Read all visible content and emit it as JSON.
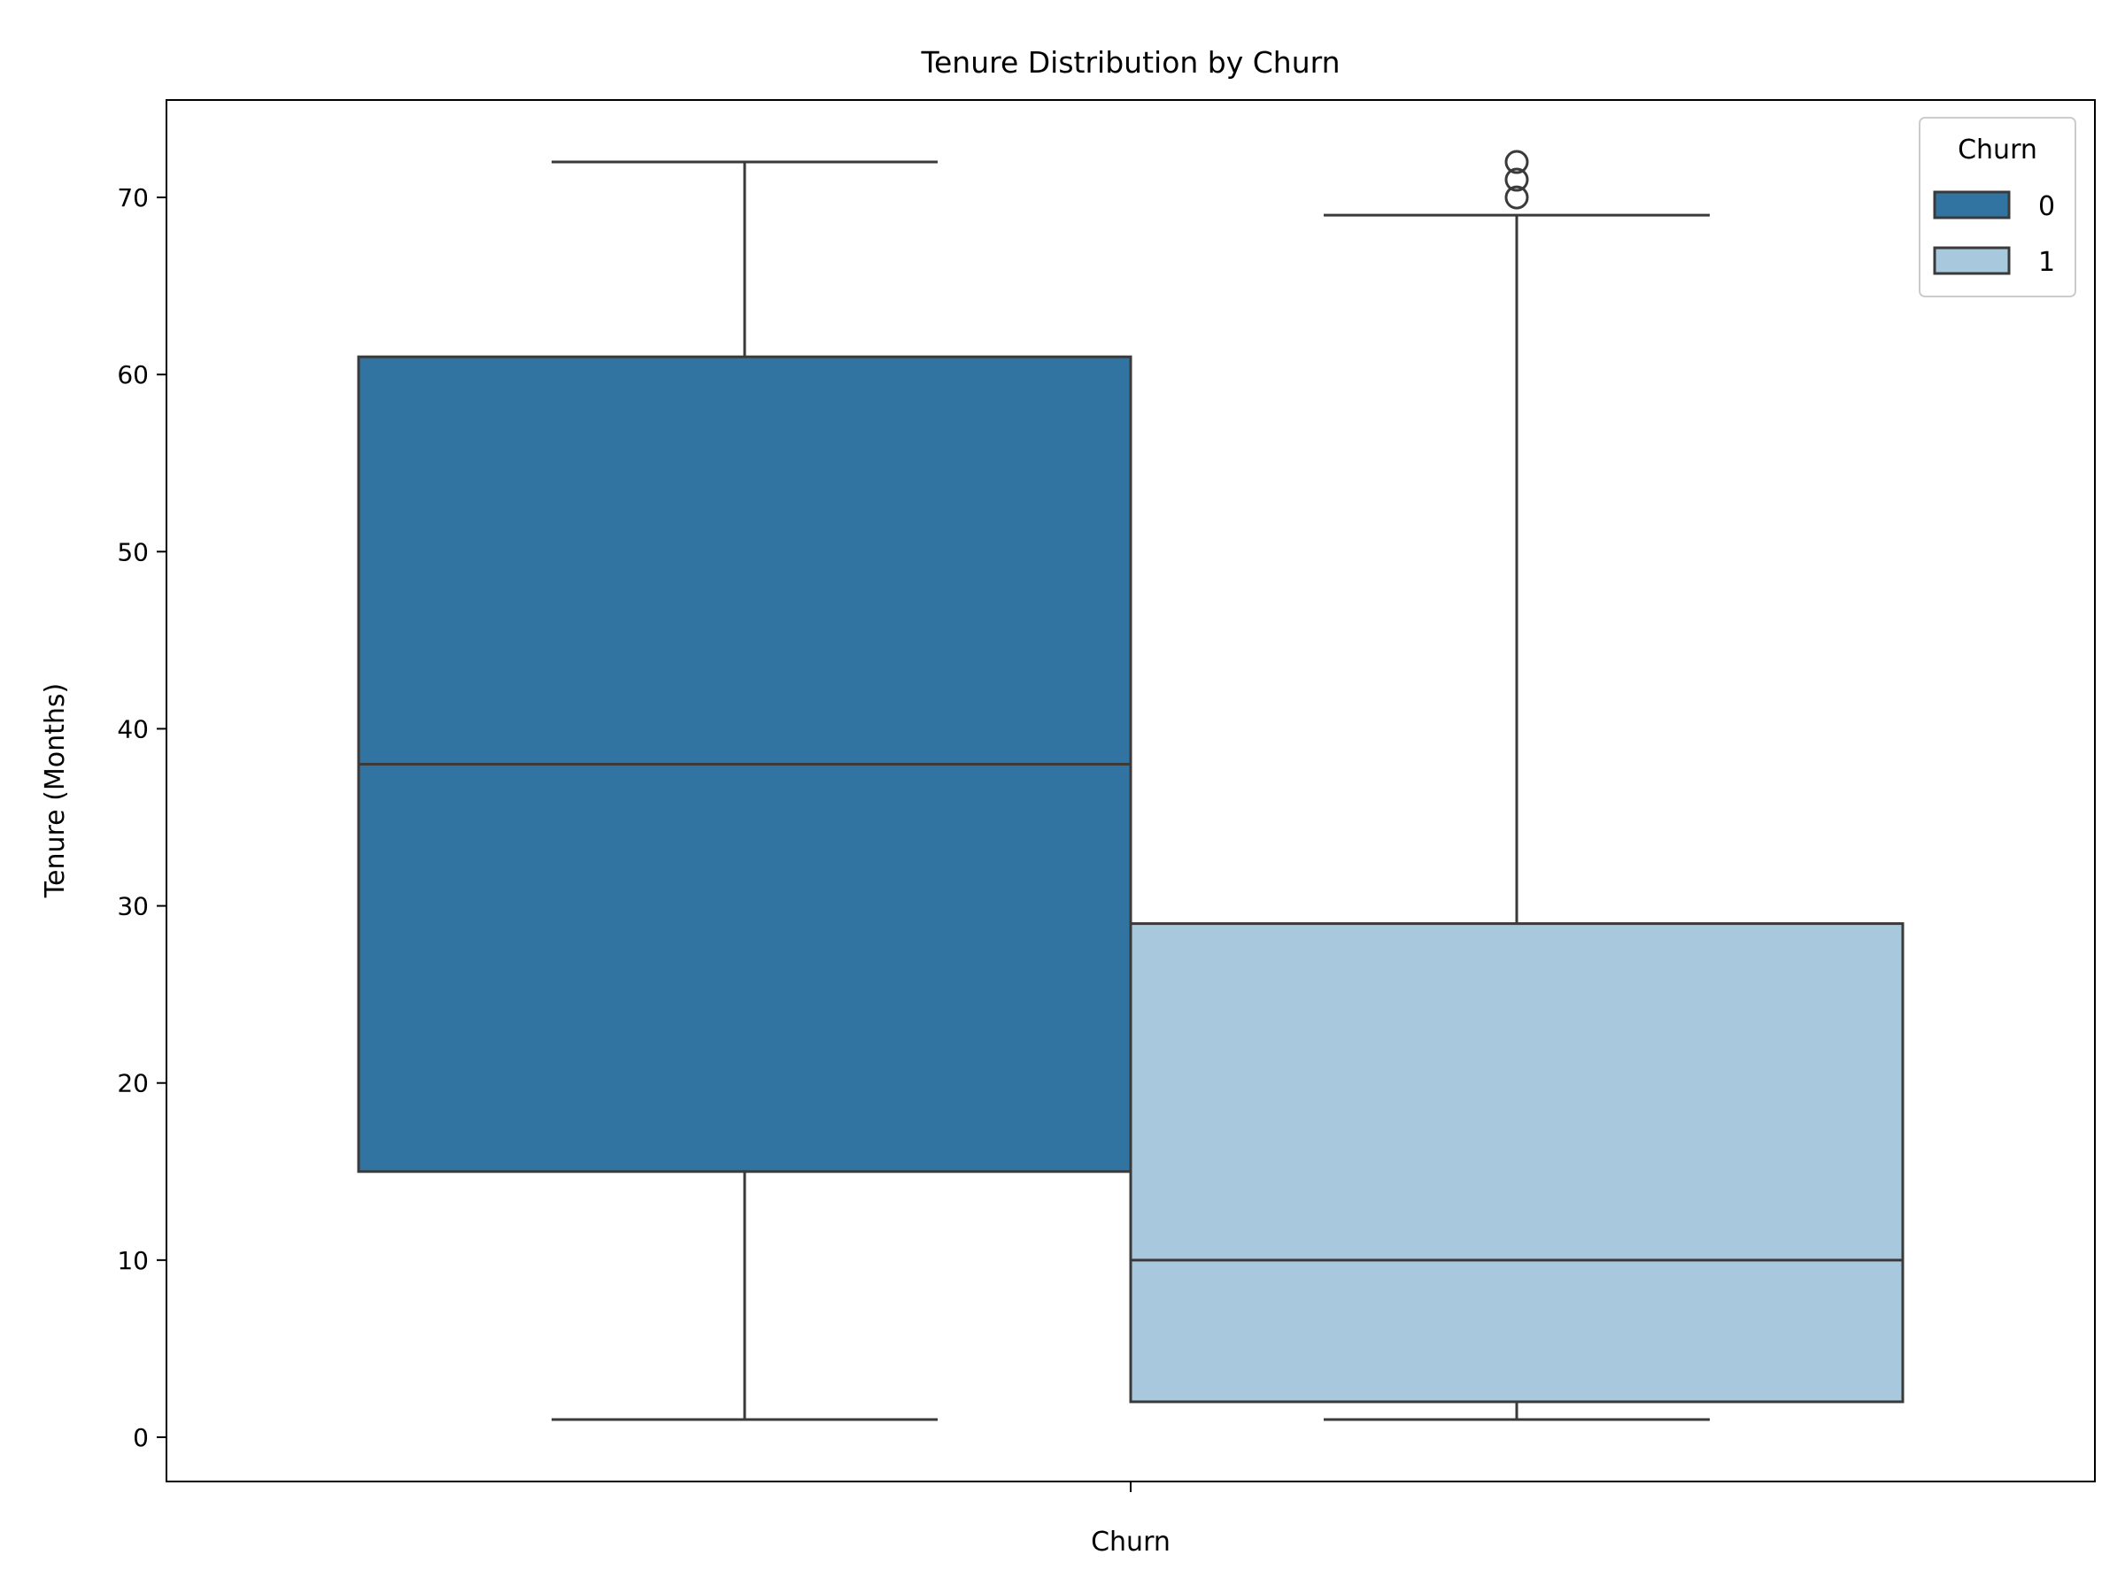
{
  "chart_data": {
    "type": "box",
    "title": "Tenure Distribution by Churn",
    "xlabel": "Churn",
    "ylabel": "Tenure (Months)",
    "x_tick_labels": [
      ""
    ],
    "ylim": [
      -2.5,
      75.5
    ],
    "yticks": [
      0,
      10,
      20,
      30,
      40,
      50,
      60,
      70
    ],
    "grid": false,
    "legend": {
      "title": "Churn",
      "placement": "top-right",
      "entries": [
        {
          "label": "0",
          "color": "#3274a1"
        },
        {
          "label": "1",
          "color": "#a8c8de"
        }
      ]
    },
    "series": [
      {
        "name": "0",
        "color": "#3274a1",
        "whisker_low": 1,
        "q1": 15,
        "median": 38,
        "q3": 61,
        "whisker_high": 72,
        "outliers": []
      },
      {
        "name": "1",
        "color": "#a8c8de",
        "whisker_low": 1,
        "q1": 2,
        "median": 10,
        "q3": 29,
        "whisker_high": 69,
        "outliers": [
          70,
          71,
          72
        ]
      }
    ]
  }
}
